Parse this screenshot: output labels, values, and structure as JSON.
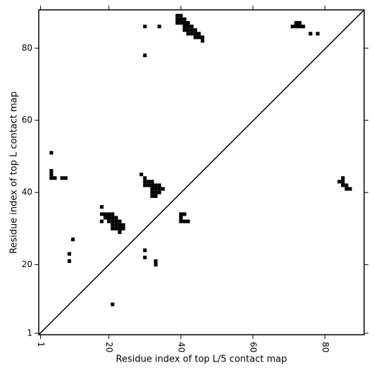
{
  "chart_data": {
    "type": "scatter",
    "xlabel": "Residue index of top L/5 contact map",
    "ylabel": "Residue index of top L contact map",
    "xlim": [
      0.5,
      90.9
    ],
    "ylim": [
      0.6,
      90.6
    ],
    "xticks": [
      1,
      20,
      40,
      60,
      80
    ],
    "yticks": [
      1,
      20,
      40,
      60,
      80
    ],
    "color": "#000000",
    "diagonal": true,
    "x": [
      30,
      34,
      30,
      39,
      39,
      39,
      40,
      40,
      40,
      41,
      41,
      41,
      41,
      42,
      42,
      42,
      42,
      43,
      43,
      43,
      44,
      44,
      44,
      45,
      45,
      46,
      46,
      71,
      72,
      72,
      73,
      73,
      74,
      76,
      78,
      4,
      4,
      4,
      4,
      5,
      7,
      8,
      10,
      9,
      9,
      21,
      18,
      18,
      19,
      20,
      21,
      19,
      20,
      21,
      22,
      18,
      20,
      21,
      22,
      23,
      21,
      22,
      23,
      24,
      21,
      22,
      23,
      24,
      23,
      29,
      30,
      30,
      31,
      32,
      30,
      31,
      32,
      33,
      34,
      32,
      33,
      34,
      35,
      32,
      33,
      34,
      32,
      33,
      30,
      30,
      33,
      33,
      40,
      41,
      40,
      40,
      41,
      42,
      85,
      84,
      85,
      85,
      86,
      86,
      87
    ],
    "y": [
      86,
      86,
      78,
      89,
      88,
      87,
      89,
      88,
      87,
      88,
      87,
      86,
      85,
      87,
      86,
      85,
      84,
      86,
      85,
      84,
      85,
      84,
      83,
      84,
      83,
      83,
      82,
      86,
      86,
      87,
      87,
      86,
      86,
      84,
      84,
      51,
      46,
      45,
      44,
      44,
      44,
      44,
      27,
      23,
      21,
      9,
      36,
      34,
      34,
      34,
      34,
      33,
      33,
      33,
      33,
      32,
      32,
      32,
      32,
      32,
      31,
      31,
      31,
      31,
      30,
      30,
      30,
      30,
      29,
      45,
      44,
      43,
      43,
      43,
      42,
      42,
      42,
      42,
      42,
      41,
      41,
      41,
      41,
      40,
      40,
      40,
      39,
      39,
      24,
      22,
      21,
      20,
      34,
      34,
      33,
      32,
      32,
      32,
      44,
      43,
      43,
      42,
      42,
      41,
      41
    ]
  }
}
